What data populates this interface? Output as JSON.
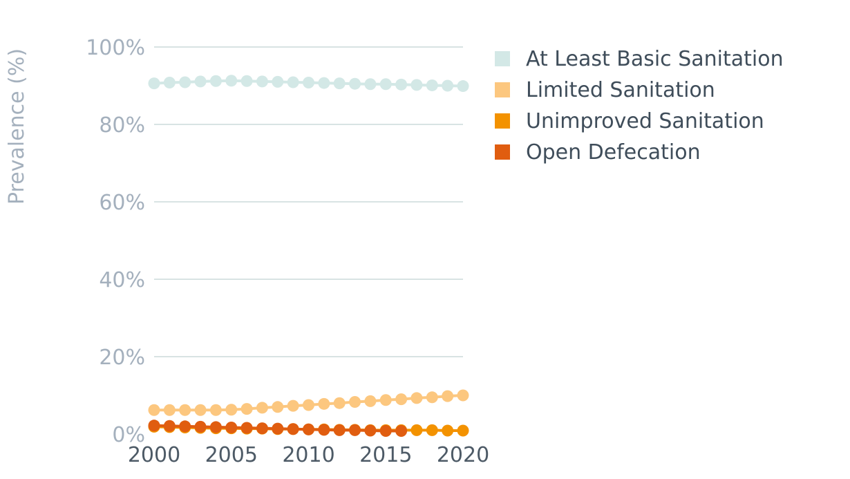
{
  "chart_data": {
    "type": "line",
    "title": "",
    "xlabel": "",
    "ylabel": "Prevalence (%)",
    "ylim": [
      0,
      100
    ],
    "y_ticks": [
      "0%",
      "20%",
      "40%",
      "60%",
      "80%",
      "100%"
    ],
    "y_tick_values": [
      0,
      20,
      40,
      60,
      80,
      100
    ],
    "x_ticks": [
      "2000",
      "2005",
      "2010",
      "2015",
      "2020"
    ],
    "x_tick_values": [
      2000,
      2005,
      2010,
      2015,
      2020
    ],
    "xlim": [
      2000,
      2020
    ],
    "grid": true,
    "legend_position": "top-right",
    "x": [
      2000,
      2001,
      2002,
      2003,
      2004,
      2005,
      2006,
      2007,
      2008,
      2009,
      2010,
      2011,
      2012,
      2013,
      2014,
      2015,
      2016,
      2017,
      2018,
      2019,
      2020
    ],
    "series": [
      {
        "name": "At Least Basic Sanitation",
        "color": "#d3e8e6",
        "values": [
          90.6,
          90.8,
          90.9,
          91.1,
          91.2,
          91.3,
          91.2,
          91.1,
          91.0,
          90.9,
          90.8,
          90.7,
          90.6,
          90.5,
          90.4,
          90.4,
          90.3,
          90.2,
          90.1,
          90.0,
          89.9
        ]
      },
      {
        "name": "Limited Sanitation",
        "color": "#fcc77f",
        "values": [
          6.2,
          6.2,
          6.2,
          6.2,
          6.2,
          6.3,
          6.5,
          6.8,
          7.0,
          7.3,
          7.5,
          7.8,
          8.0,
          8.3,
          8.5,
          8.8,
          9.0,
          9.3,
          9.5,
          9.8,
          10.0
        ]
      },
      {
        "name": "Unimproved Sanitation",
        "color": "#f39200",
        "values": [
          1.9,
          1.8,
          1.7,
          1.6,
          1.5,
          1.5,
          1.4,
          1.4,
          1.3,
          1.3,
          1.2,
          1.2,
          1.1,
          1.1,
          1.0,
          1.0,
          1.0,
          1.0,
          1.0,
          0.9,
          0.9
        ]
      },
      {
        "name": "Open Defecation",
        "color": "#e05d10",
        "values": [
          2.2,
          2.1,
          2.0,
          1.9,
          1.8,
          1.7,
          1.6,
          1.5,
          1.4,
          1.3,
          1.2,
          1.1,
          1.0,
          1.0,
          0.9,
          0.8,
          0.8,
          null,
          null,
          null,
          null
        ]
      }
    ]
  }
}
